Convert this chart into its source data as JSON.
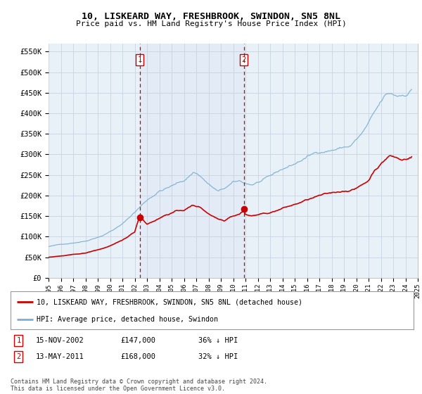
{
  "title": "10, LISKEARD WAY, FRESHBROOK, SWINDON, SN5 8NL",
  "subtitle": "Price paid vs. HM Land Registry's House Price Index (HPI)",
  "ylim": [
    0,
    570000
  ],
  "yticks": [
    0,
    50000,
    100000,
    150000,
    200000,
    250000,
    300000,
    350000,
    400000,
    450000,
    500000,
    550000
  ],
  "ytick_labels": [
    "£0",
    "£50K",
    "£100K",
    "£150K",
    "£200K",
    "£250K",
    "£300K",
    "£350K",
    "£400K",
    "£450K",
    "£500K",
    "£550K"
  ],
  "xlim_start": 1995.5,
  "xlim_end": 2025.2,
  "property_color": "#cc0000",
  "hpi_color": "#7bafd4",
  "hpi_fill_color": "#dce8f5",
  "vline_color": "#cc0000",
  "purchase1_year": 2002.9,
  "purchase1_price": 147000,
  "purchase1_label": "1",
  "purchase1_date": "15-NOV-2002",
  "purchase1_pct": "36% ↓ HPI",
  "purchase2_year": 2011.37,
  "purchase2_price": 168000,
  "purchase2_label": "2",
  "purchase2_date": "13-MAY-2011",
  "purchase2_pct": "32% ↓ HPI",
  "legend_line1": "10, LISKEARD WAY, FRESHBROOK, SWINDON, SN5 8NL (detached house)",
  "legend_line2": "HPI: Average price, detached house, Swindon",
  "footer": "Contains HM Land Registry data © Crown copyright and database right 2024.\nThis data is licensed under the Open Government Licence v3.0."
}
